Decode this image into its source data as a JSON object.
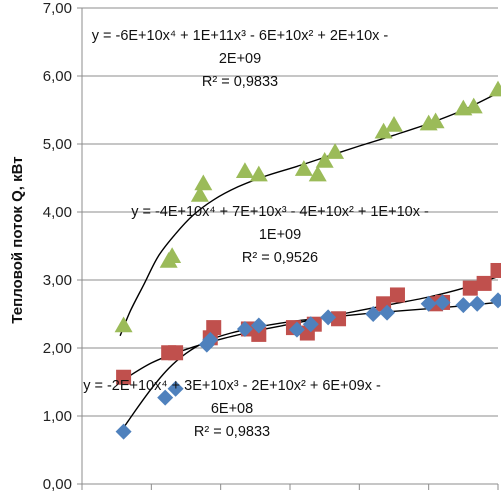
{
  "chart_data": {
    "type": "scatter",
    "title": "",
    "ylabel": "Тепловой поток Q, кВт",
    "xlabel": "",
    "ylim": [
      0,
      7
    ],
    "yticks": [
      "0,00",
      "1,00",
      "2,00",
      "3,00",
      "4,00",
      "5,00",
      "6,00",
      "7,00"
    ],
    "xlim": [
      0.02,
      0.14
    ],
    "x_tick_labels_visible": false,
    "grid": "horizontal",
    "legend": "none",
    "series": [
      {
        "marker": "triangle",
        "color": "#9BBB59",
        "points": [
          [
            0.032,
            2.33
          ],
          [
            0.045,
            3.28
          ],
          [
            0.046,
            3.35
          ],
          [
            0.054,
            4.25
          ],
          [
            0.055,
            4.42
          ],
          [
            0.067,
            4.6
          ],
          [
            0.071,
            4.55
          ],
          [
            0.084,
            4.63
          ],
          [
            0.088,
            4.55
          ],
          [
            0.09,
            4.75
          ],
          [
            0.093,
            4.88
          ],
          [
            0.107,
            5.18
          ],
          [
            0.11,
            5.28
          ],
          [
            0.12,
            5.3
          ],
          [
            0.122,
            5.33
          ],
          [
            0.13,
            5.52
          ],
          [
            0.133,
            5.55
          ],
          [
            0.14,
            5.8
          ]
        ],
        "trendline": {
          "equation_lines": [
            "y = -6E+10x⁴ + 1E+11x³ - 6E+10x² + 2E+10x -",
            "2E+09"
          ],
          "r2": "R² = 0,9833",
          "curve": [
            [
              0.031,
              2.18
            ],
            [
              0.034,
              2.55
            ],
            [
              0.038,
              2.95
            ],
            [
              0.042,
              3.35
            ],
            [
              0.047,
              3.68
            ],
            [
              0.052,
              3.95
            ],
            [
              0.058,
              4.18
            ],
            [
              0.065,
              4.37
            ],
            [
              0.073,
              4.53
            ],
            [
              0.082,
              4.67
            ],
            [
              0.091,
              4.82
            ],
            [
              0.1,
              4.97
            ],
            [
              0.11,
              5.13
            ],
            [
              0.12,
              5.3
            ],
            [
              0.13,
              5.5
            ],
            [
              0.14,
              5.75
            ]
          ]
        }
      },
      {
        "marker": "square",
        "color": "#C0504D",
        "points": [
          [
            0.032,
            1.57
          ],
          [
            0.045,
            1.93
          ],
          [
            0.047,
            1.93
          ],
          [
            0.057,
            2.15
          ],
          [
            0.058,
            2.3
          ],
          [
            0.068,
            2.28
          ],
          [
            0.071,
            2.2
          ],
          [
            0.081,
            2.3
          ],
          [
            0.085,
            2.22
          ],
          [
            0.087,
            2.35
          ],
          [
            0.094,
            2.43
          ],
          [
            0.107,
            2.65
          ],
          [
            0.111,
            2.78
          ],
          [
            0.122,
            2.65
          ],
          [
            0.124,
            2.67
          ],
          [
            0.132,
            2.88
          ],
          [
            0.136,
            2.95
          ],
          [
            0.14,
            3.14
          ]
        ],
        "trendline": {
          "equation_lines": [
            "y = -4E+10x⁴ + 7E+10x³ - 4E+10x² + 1E+10x -",
            "1E+09"
          ],
          "r2": "R² = 0,9526",
          "curve": [
            [
              0.031,
              1.5
            ],
            [
              0.04,
              1.78
            ],
            [
              0.05,
              1.98
            ],
            [
              0.06,
              2.13
            ],
            [
              0.07,
              2.25
            ],
            [
              0.08,
              2.35
            ],
            [
              0.09,
              2.45
            ],
            [
              0.1,
              2.55
            ],
            [
              0.11,
              2.65
            ],
            [
              0.12,
              2.75
            ],
            [
              0.13,
              2.88
            ],
            [
              0.14,
              3.05
            ]
          ]
        }
      },
      {
        "marker": "diamond",
        "color": "#4F81BD",
        "points": [
          [
            0.032,
            0.77
          ],
          [
            0.044,
            1.27
          ],
          [
            0.047,
            1.4
          ],
          [
            0.056,
            2.05
          ],
          [
            0.057,
            2.12
          ],
          [
            0.067,
            2.28
          ],
          [
            0.071,
            2.33
          ],
          [
            0.082,
            2.27
          ],
          [
            0.086,
            2.35
          ],
          [
            0.091,
            2.45
          ],
          [
            0.104,
            2.5
          ],
          [
            0.108,
            2.52
          ],
          [
            0.12,
            2.65
          ],
          [
            0.124,
            2.67
          ],
          [
            0.13,
            2.63
          ],
          [
            0.134,
            2.65
          ],
          [
            0.14,
            2.7
          ]
        ],
        "trendline": {
          "equation_lines": [
            "y = -2E+10x⁴ + 3E+10x³ - 2E+10x² + 6E+09x -",
            "6E+08"
          ],
          "r2": "R² = 0,9833",
          "curve": [
            [
              0.031,
              0.75
            ],
            [
              0.035,
              1.05
            ],
            [
              0.04,
              1.4
            ],
            [
              0.045,
              1.7
            ],
            [
              0.05,
              1.92
            ],
            [
              0.056,
              2.1
            ],
            [
              0.063,
              2.22
            ],
            [
              0.072,
              2.32
            ],
            [
              0.082,
              2.4
            ],
            [
              0.093,
              2.46
            ],
            [
              0.105,
              2.52
            ],
            [
              0.118,
              2.57
            ],
            [
              0.13,
              2.62
            ],
            [
              0.14,
              2.67
            ]
          ]
        }
      }
    ]
  }
}
